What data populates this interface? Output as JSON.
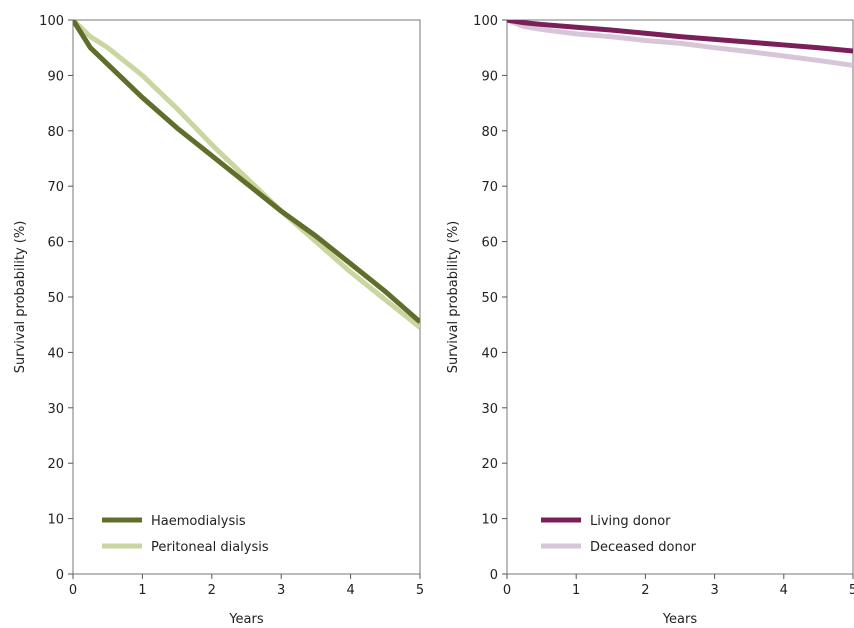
{
  "chart_data": [
    {
      "type": "line",
      "title": "",
      "xlabel": "Years",
      "ylabel": "Survival probability (%)",
      "xlim": [
        0,
        5
      ],
      "ylim": [
        0,
        100
      ],
      "xticks": [
        "0",
        "1",
        "2",
        "3",
        "4",
        "5"
      ],
      "yticks": [
        "0",
        "10",
        "20",
        "30",
        "40",
        "50",
        "60",
        "70",
        "80",
        "90",
        "100"
      ],
      "grid": false,
      "legend_position": "bottom-left",
      "series": [
        {
          "name": "Haemodialysis",
          "color": "#5f6e2a",
          "x": [
            0,
            0.25,
            0.5,
            1,
            1.5,
            2,
            2.5,
            3,
            3.5,
            4,
            4.5,
            5
          ],
          "y": [
            100,
            95,
            92,
            86,
            80.5,
            75.5,
            70.5,
            65.5,
            61,
            56,
            51,
            45.5
          ]
        },
        {
          "name": "Peritoneal dialysis",
          "color": "#c9d6a0",
          "x": [
            0,
            0.25,
            0.5,
            1,
            1.5,
            2,
            2.5,
            3,
            3.5,
            4,
            4.5,
            5
          ],
          "y": [
            100,
            97,
            95,
            90,
            84,
            77.5,
            71.5,
            65.5,
            60,
            54.5,
            49.5,
            44.5
          ]
        }
      ]
    },
    {
      "type": "line",
      "title": "",
      "xlabel": "Years",
      "ylabel": "Survival probability (%)",
      "xlim": [
        0,
        5
      ],
      "ylim": [
        0,
        100
      ],
      "xticks": [
        "0",
        "1",
        "2",
        "3",
        "4",
        "5"
      ],
      "yticks": [
        "0",
        "10",
        "20",
        "30",
        "40",
        "50",
        "60",
        "70",
        "80",
        "90",
        "100"
      ],
      "grid": false,
      "legend_position": "bottom-left",
      "series": [
        {
          "name": "Living donor",
          "color": "#7a1f5a",
          "x": [
            0,
            0.25,
            0.5,
            1,
            1.5,
            2,
            2.5,
            3,
            3.5,
            4,
            4.5,
            5
          ],
          "y": [
            100,
            99.5,
            99.2,
            98.7,
            98.2,
            97.6,
            97.0,
            96.5,
            96.0,
            95.5,
            95.0,
            94.4
          ]
        },
        {
          "name": "Deceased donor",
          "color": "#d6c6d8",
          "x": [
            0,
            0.25,
            0.5,
            1,
            1.5,
            2,
            2.5,
            3,
            3.5,
            4,
            4.5,
            5
          ],
          "y": [
            100,
            98.8,
            98.3,
            97.5,
            97.0,
            96.3,
            95.8,
            95.0,
            94.3,
            93.5,
            92.7,
            91.8
          ]
        }
      ]
    }
  ]
}
